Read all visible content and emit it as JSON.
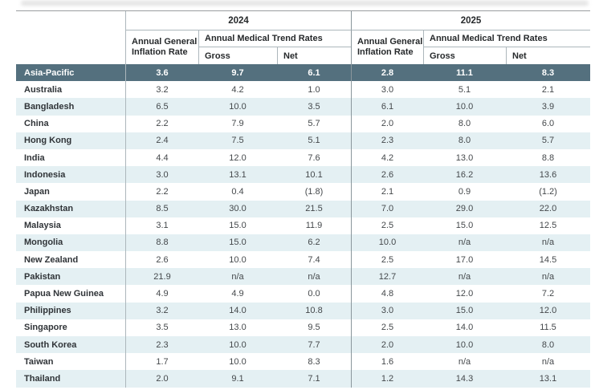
{
  "colors": {
    "highlight_row_bg": "#54707e",
    "highlight_row_text": "#ffffff",
    "alt_row_bg": "#e4f0f3",
    "row_bg": "#ffffff",
    "grid_line_light": "#adb7bc",
    "grid_line_dark": "#8a969c"
  },
  "table": {
    "groups": [
      {
        "year": "2024",
        "inflation_header": "Annual General Inflation Rate",
        "trend_header": "Annual Medical Trend Rates",
        "gross_label": "Gross",
        "net_label": "Net"
      },
      {
        "year": "2025",
        "inflation_header": "Annual General Inflation Rate",
        "trend_header": "Annual Medical Trend Rates",
        "gross_label": "Gross",
        "net_label": "Net"
      }
    ],
    "summary_row": {
      "label": "Asia-Pacific",
      "values": [
        "3.6",
        "9.7",
        "6.1",
        "2.8",
        "11.1",
        "8.3"
      ]
    },
    "rows": [
      {
        "label": "Australia",
        "values": [
          "3.2",
          "4.2",
          "1.0",
          "3.0",
          "5.1",
          "2.1"
        ]
      },
      {
        "label": "Bangladesh",
        "values": [
          "6.5",
          "10.0",
          "3.5",
          "6.1",
          "10.0",
          "3.9"
        ]
      },
      {
        "label": "China",
        "values": [
          "2.2",
          "7.9",
          "5.7",
          "2.0",
          "8.0",
          "6.0"
        ]
      },
      {
        "label": "Hong Kong",
        "values": [
          "2.4",
          "7.5",
          "5.1",
          "2.3",
          "8.0",
          "5.7"
        ]
      },
      {
        "label": "India",
        "values": [
          "4.4",
          "12.0",
          "7.6",
          "4.2",
          "13.0",
          "8.8"
        ]
      },
      {
        "label": "Indonesia",
        "values": [
          "3.0",
          "13.1",
          "10.1",
          "2.6",
          "16.2",
          "13.6"
        ]
      },
      {
        "label": "Japan",
        "values": [
          "2.2",
          "0.4",
          "(1.8)",
          "2.1",
          "0.9",
          "(1.2)"
        ]
      },
      {
        "label": "Kazakhstan",
        "values": [
          "8.5",
          "30.0",
          "21.5",
          "7.0",
          "29.0",
          "22.0"
        ]
      },
      {
        "label": "Malaysia",
        "values": [
          "3.1",
          "15.0",
          "11.9",
          "2.5",
          "15.0",
          "12.5"
        ]
      },
      {
        "label": "Mongolia",
        "values": [
          "8.8",
          "15.0",
          "6.2",
          "10.0",
          "n/a",
          "n/a"
        ]
      },
      {
        "label": "New Zealand",
        "values": [
          "2.6",
          "10.0",
          "7.4",
          "2.5",
          "17.0",
          "14.5"
        ]
      },
      {
        "label": "Pakistan",
        "values": [
          "21.9",
          "n/a",
          "n/a",
          "12.7",
          "n/a",
          "n/a"
        ]
      },
      {
        "label": "Papua New Guinea",
        "values": [
          "4.9",
          "4.9",
          "0.0",
          "4.8",
          "12.0",
          "7.2"
        ]
      },
      {
        "label": "Philippines",
        "values": [
          "3.2",
          "14.0",
          "10.8",
          "3.0",
          "15.0",
          "12.0"
        ]
      },
      {
        "label": "Singapore",
        "values": [
          "3.5",
          "13.0",
          "9.5",
          "2.5",
          "14.0",
          "11.5"
        ]
      },
      {
        "label": "South Korea",
        "values": [
          "2.3",
          "10.0",
          "7.7",
          "2.0",
          "10.0",
          "8.0"
        ]
      },
      {
        "label": "Taiwan",
        "values": [
          "1.7",
          "10.0",
          "8.3",
          "1.6",
          "n/a",
          "n/a"
        ]
      },
      {
        "label": "Thailand",
        "values": [
          "2.0",
          "9.1",
          "7.1",
          "1.2",
          "14.3",
          "13.1"
        ]
      }
    ]
  }
}
